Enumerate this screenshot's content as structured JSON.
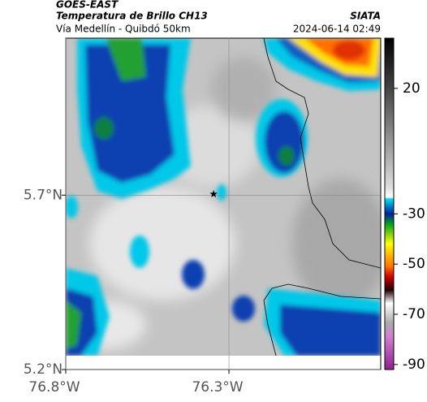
{
  "map": {
    "source": "GOES-EAST",
    "title": "Temperatura de Brillo CH13",
    "subtitle": "Vía Medellín - Quibdó 50km",
    "credit": "SIATA",
    "timestamp": "2024-06-14 02:49",
    "lonlim": [
      -76.8,
      -75.835
    ],
    "latlim": [
      5.2,
      6.15
    ],
    "lonticks": [
      {
        "value": -76.8,
        "label": "76.8°W"
      },
      {
        "value": -76.3,
        "label": "76.3°W"
      }
    ],
    "latticks": [
      {
        "value": 5.7,
        "label": "5.7°N"
      },
      {
        "value": 5.2,
        "label": "5.2°N"
      }
    ],
    "marker": {
      "lon": -76.347,
      "lat": 5.703
    },
    "colorbar": {
      "lim": [
        -92,
        40
      ],
      "ticks": [
        20,
        -30,
        -50,
        -70,
        -90
      ]
    }
  }
}
